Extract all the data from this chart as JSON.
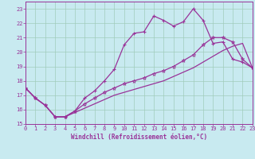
{
  "background_color": "#c8eaf0",
  "grid_color": "#a0ccbb",
  "line_color": "#993399",
  "xlabel": "Windchill (Refroidissement éolien,°C)",
  "xlim": [
    0,
    23
  ],
  "ylim": [
    15,
    23.5
  ],
  "yticks": [
    15,
    16,
    17,
    18,
    19,
    20,
    21,
    22,
    23
  ],
  "xticks": [
    0,
    1,
    2,
    3,
    4,
    5,
    6,
    7,
    8,
    9,
    10,
    11,
    12,
    13,
    14,
    15,
    16,
    17,
    18,
    19,
    20,
    21,
    22,
    23
  ],
  "line1_x": [
    0,
    1,
    2,
    3,
    4,
    5,
    6,
    7,
    8,
    9,
    10,
    11,
    12,
    13,
    14,
    15,
    16,
    17,
    18,
    19,
    20,
    21,
    22,
    23
  ],
  "line1_y": [
    17.5,
    16.8,
    16.3,
    15.5,
    15.5,
    15.8,
    16.1,
    16.4,
    16.7,
    17.0,
    17.2,
    17.4,
    17.6,
    17.8,
    18.0,
    18.3,
    18.6,
    18.9,
    19.3,
    19.7,
    20.1,
    20.4,
    20.6,
    18.9
  ],
  "line2_x": [
    0,
    1,
    2,
    3,
    4,
    5,
    6,
    7,
    8,
    9,
    10,
    11,
    12,
    13,
    14,
    15,
    16,
    17,
    18,
    19,
    20,
    21,
    22,
    23
  ],
  "line2_y": [
    17.5,
    16.8,
    16.3,
    15.5,
    15.5,
    15.9,
    16.8,
    17.3,
    18.0,
    18.8,
    20.5,
    21.3,
    21.4,
    22.5,
    22.2,
    21.8,
    22.1,
    23.0,
    22.2,
    20.6,
    20.7,
    19.5,
    19.3,
    18.9
  ],
  "line3_x": [
    0,
    1,
    2,
    3,
    4,
    5,
    6,
    7,
    8,
    9,
    10,
    11,
    12,
    13,
    14,
    15,
    16,
    17,
    18,
    19,
    20,
    21,
    22,
    23
  ],
  "line3_y": [
    17.5,
    16.8,
    16.3,
    15.5,
    15.5,
    15.9,
    16.4,
    16.8,
    17.2,
    17.5,
    17.8,
    18.0,
    18.2,
    18.5,
    18.7,
    19.0,
    19.4,
    19.8,
    20.5,
    21.0,
    21.0,
    20.7,
    19.5,
    18.9
  ]
}
